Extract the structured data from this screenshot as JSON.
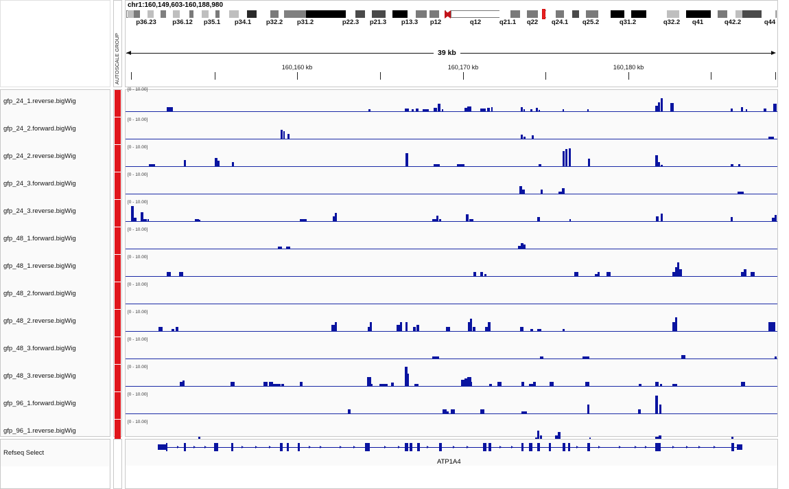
{
  "locus": "chr1:160,149,603-160,188,980",
  "autoscale_label": "AUTOSCALE GROUP",
  "ruler": {
    "span_label": "39 kb",
    "tick_labels": [
      "160,160 kb",
      "160,170 kb",
      "160,180 kb"
    ]
  },
  "cytobands": [
    "p36.23",
    "p36.12",
    "p35.1",
    "p34.1",
    "p32.2",
    "p31.2",
    "p22.3",
    "p21.3",
    "p13.3",
    "p12",
    "q12",
    "q21.1",
    "q22",
    "q24.1",
    "q25.2",
    "q31.2",
    "q32.2",
    "q41",
    "q42.2",
    "q44"
  ],
  "tracks": [
    {
      "name": "gfp_24_1.reverse.bigWig",
      "range": "[0 - 10.00]"
    },
    {
      "name": "gfp_24_2.forward.bigWig",
      "range": "[0 - 10.00]"
    },
    {
      "name": "gfp_24_2.reverse.bigWig",
      "range": "[0 - 10.00]"
    },
    {
      "name": "gfp_24_3.forward.bigWig",
      "range": "[0 - 10.00]"
    },
    {
      "name": "gfp_24_3.reverse.bigWig",
      "range": "[0 - 10.00]"
    },
    {
      "name": "gfp_48_1.forward.bigWig",
      "range": "[0 - 10.00]"
    },
    {
      "name": "gfp_48_1.reverse.bigWig",
      "range": "[0 - 10.00]"
    },
    {
      "name": "gfp_48_2.forward.bigWig",
      "range": "[0 - 10.00]"
    },
    {
      "name": "gfp_48_2.reverse.bigWig",
      "range": "[0 - 10.00]"
    },
    {
      "name": "gfp_48_3.forward.bigWig",
      "range": "[0 - 10.00]"
    },
    {
      "name": "gfp_48_3.reverse.bigWig",
      "range": "[0 - 10.00]"
    },
    {
      "name": "gfp_96_1.forward.bigWig",
      "range": "[0 - 10.00]"
    },
    {
      "name": "gfp_96_1.reverse.bigWig",
      "range": "[0 - 10.00]"
    }
  ],
  "annotation_track": {
    "name": "Refseq Select",
    "gene": "ATP1A4"
  },
  "colors": {
    "signal": "#0a14a0",
    "attribute": "#e0161c",
    "gene": "#0a14a0"
  }
}
